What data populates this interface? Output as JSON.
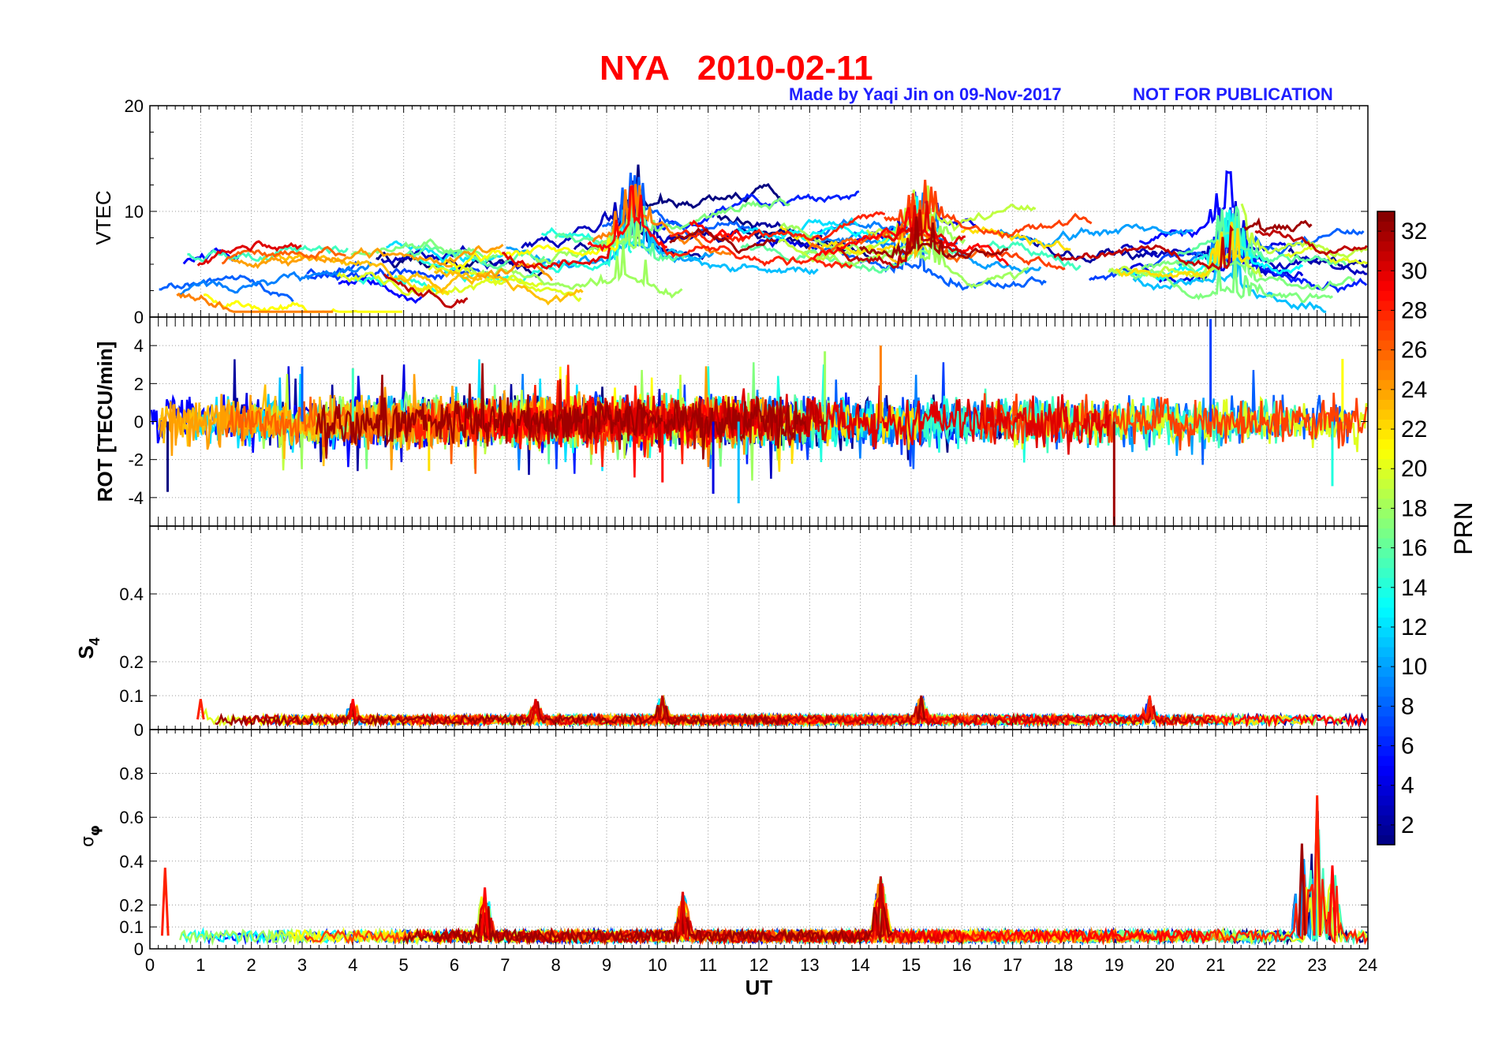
{
  "figure": {
    "title": "NYA   2010-02-11",
    "credit": "Made by Yaqi Jin on 09-Nov-2017",
    "notice": "NOT FOR PUBLICATION"
  },
  "colors": {
    "title": "#ff0000",
    "credit": "#1f1fff",
    "grid": "#9a9a9a"
  },
  "chart_data": [
    {
      "id": "vtec",
      "type": "line",
      "ylabel": "VTEC",
      "xlim": [
        0,
        24
      ],
      "ylim": [
        0,
        20
      ],
      "yticks": [
        0,
        10,
        20
      ],
      "grid": true,
      "series_by_prn": true,
      "trend_note": "VTEC mostly 2-9, rising to peaks near 12 around 9-10 UT and 15 UT",
      "envelope": {
        "x": [
          0,
          2,
          4,
          6,
          8,
          9.5,
          11,
          13,
          15.2,
          17,
          19,
          21,
          22,
          24
        ],
        "y": [
          4,
          4,
          5,
          4,
          6,
          8,
          8,
          7,
          8,
          7,
          5,
          7,
          7,
          4
        ]
      },
      "peaks": [
        {
          "x": 9.5,
          "y": 12.5
        },
        {
          "x": 15.2,
          "y": 12
        },
        {
          "x": 21.3,
          "y": 11.5
        }
      ]
    },
    {
      "id": "rot",
      "type": "line",
      "ylabel": "ROT [TECU/min]",
      "xlim": [
        0,
        24
      ],
      "ylim": [
        -5.5,
        5.5
      ],
      "yticks": [
        -4,
        -2,
        0,
        2,
        4
      ],
      "grid": true,
      "typical_amplitude": 1.2,
      "spikes": [
        {
          "x": 0.35,
          "y": -3.7
        },
        {
          "x": 3.0,
          "y": 2.9
        },
        {
          "x": 4.0,
          "y": 2.8
        },
        {
          "x": 5.5,
          "y": -2.6
        },
        {
          "x": 10.1,
          "y": -3.2
        },
        {
          "x": 11.1,
          "y": -3.8
        },
        {
          "x": 11.6,
          "y": -4.3
        },
        {
          "x": 13.3,
          "y": 3.7
        },
        {
          "x": 14.4,
          "y": 4.0
        },
        {
          "x": 19.0,
          "y": -5.5
        },
        {
          "x": 20.9,
          "y": 5.4
        },
        {
          "x": 23.3,
          "y": -3.4
        },
        {
          "x": 23.5,
          "y": 3.3
        }
      ]
    },
    {
      "id": "s4",
      "type": "line",
      "ylabel": "S4",
      "xlim": [
        0,
        24
      ],
      "ylim": [
        0,
        0.6
      ],
      "yticks": [
        0,
        0.1,
        0.2,
        0.4
      ],
      "grid": true,
      "baseline": 0.03,
      "peaks": [
        {
          "x": 1.0,
          "y": 0.09
        },
        {
          "x": 4.0,
          "y": 0.09
        },
        {
          "x": 7.6,
          "y": 0.09
        },
        {
          "x": 10.1,
          "y": 0.1
        },
        {
          "x": 15.2,
          "y": 0.1
        },
        {
          "x": 19.7,
          "y": 0.1
        }
      ]
    },
    {
      "id": "sigma_phi",
      "type": "line",
      "ylabel": "σφ",
      "xlabel": "UT",
      "xlim": [
        0,
        24
      ],
      "ylim": [
        0,
        1
      ],
      "xticks": [
        0,
        1,
        2,
        3,
        4,
        5,
        6,
        7,
        8,
        9,
        10,
        11,
        12,
        13,
        14,
        15,
        16,
        17,
        18,
        19,
        20,
        21,
        22,
        23,
        24
      ],
      "yticks": [
        0,
        0.1,
        0.2,
        0.4,
        0.6,
        0.8
      ],
      "grid": true,
      "baseline": 0.06,
      "peaks": [
        {
          "x": 0.3,
          "y": 0.37
        },
        {
          "x": 6.6,
          "y": 0.28
        },
        {
          "x": 10.5,
          "y": 0.26
        },
        {
          "x": 14.4,
          "y": 0.33
        },
        {
          "x": 22.7,
          "y": 0.48
        },
        {
          "x": 23.0,
          "y": 0.7
        },
        {
          "x": 23.3,
          "y": 0.38
        }
      ]
    }
  ],
  "colorbar": {
    "label": "PRN",
    "range": [
      1,
      33
    ],
    "ticks": [
      2,
      4,
      6,
      8,
      10,
      12,
      14,
      16,
      18,
      20,
      22,
      24,
      26,
      28,
      30,
      32
    ],
    "colormap": "jet"
  }
}
